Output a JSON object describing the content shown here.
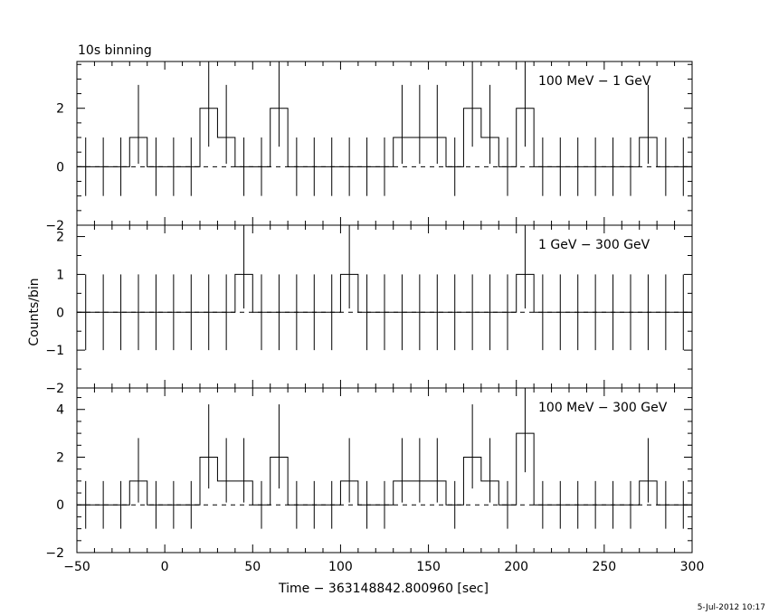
{
  "chart_data": {
    "type": "line",
    "title": "10s binning",
    "xlabel": "Time − 363148842.800960 [sec]",
    "ylabel": "Counts/bin",
    "timestamp": "5-Jul-2012 10:17",
    "xlim": [
      -50,
      300
    ],
    "x_ticks": [
      -50,
      0,
      50,
      100,
      150,
      200,
      250,
      300
    ],
    "bin_width": 10,
    "bin_centers": [
      -45,
      -35,
      -25,
      -15,
      -5,
      5,
      15,
      25,
      35,
      45,
      55,
      65,
      75,
      85,
      95,
      105,
      115,
      125,
      135,
      145,
      155,
      165,
      175,
      185,
      195,
      205,
      215,
      225,
      235,
      245,
      255,
      265,
      275,
      285,
      295
    ],
    "grid": false,
    "legend": "none",
    "panels": [
      {
        "label": "100 MeV − 1 GeV",
        "ylim": [
          -2,
          3.6
        ],
        "y_ticks": [
          -2,
          0,
          2
        ],
        "values": [
          0,
          0,
          0,
          1,
          0,
          0,
          0,
          2,
          1,
          0,
          0,
          2,
          0,
          0,
          0,
          0,
          0,
          0,
          1,
          1,
          1,
          0,
          2,
          1,
          0,
          2,
          0,
          0,
          0,
          0,
          0,
          0,
          1,
          0,
          0
        ]
      },
      {
        "label": "1 GeV − 300 GeV",
        "ylim": [
          -2,
          2.3
        ],
        "y_ticks": [
          -2,
          -1,
          0,
          1,
          2
        ],
        "values": [
          0,
          0,
          0,
          0,
          0,
          0,
          0,
          0,
          0,
          1,
          0,
          0,
          0,
          0,
          0,
          1,
          0,
          0,
          0,
          0,
          0,
          0,
          0,
          0,
          0,
          1,
          0,
          0,
          0,
          0,
          0,
          0,
          0,
          0,
          0
        ]
      },
      {
        "label": "100 MeV − 300 GeV",
        "ylim": [
          -2,
          4.9
        ],
        "y_ticks": [
          -2,
          0,
          2,
          4
        ],
        "values": [
          0,
          0,
          0,
          1,
          0,
          0,
          0,
          2,
          1,
          1,
          0,
          2,
          0,
          0,
          0,
          1,
          0,
          0,
          1,
          1,
          1,
          0,
          2,
          1,
          0,
          3,
          0,
          0,
          0,
          0,
          0,
          0,
          1,
          0,
          0
        ]
      }
    ]
  }
}
